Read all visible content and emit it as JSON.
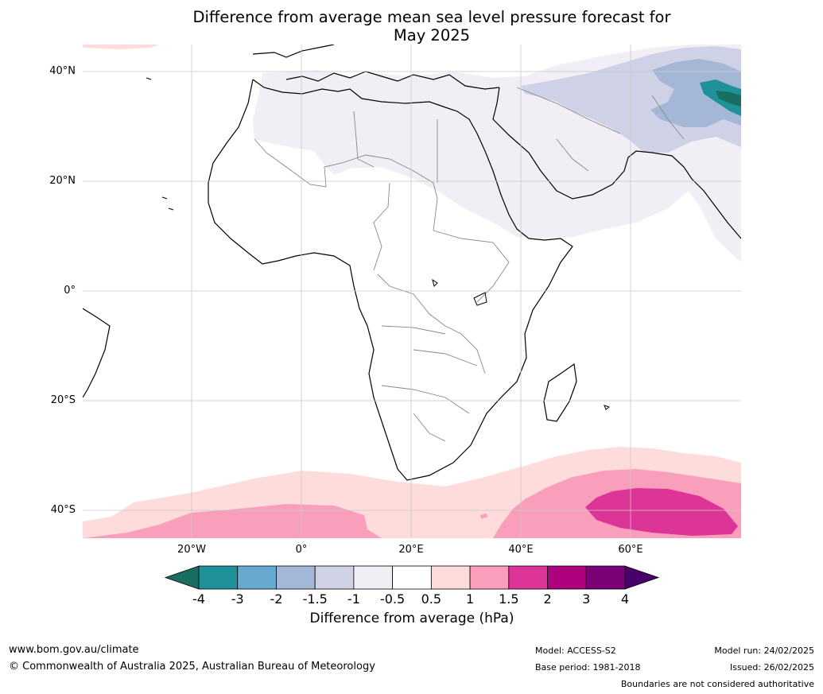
{
  "title_line1": "Difference from average mean sea level pressure forecast for",
  "title_line2": "May 2025",
  "lat_labels": [
    "40°N",
    "20°N",
    "0°",
    "20°S",
    "40°S"
  ],
  "lon_labels": [
    "20°W",
    "0°",
    "20°E",
    "40°E",
    "60°E"
  ],
  "colorbar": {
    "ticks": [
      "-4",
      "-3",
      "-2",
      "-1.5",
      "-1",
      "-0.5",
      "0.5",
      "1",
      "1.5",
      "2",
      "3",
      "4"
    ],
    "colors": [
      "#1a6e61",
      "#1f9199",
      "#67aacf",
      "#a4b7d6",
      "#cfd1e6",
      "#f2eef5",
      "#ffffff",
      "#fddcdb",
      "#f99fbc",
      "#dd3498",
      "#ae017e",
      "#7a0177",
      "#49006a"
    ],
    "label": "Difference from average (hPa)"
  },
  "footer": {
    "url": "www.bom.gov.au/climate",
    "copyright": "© Commonwealth of Australia 2025, Australian Bureau of Meteorology",
    "model": "Model: ACCESS-S2",
    "base_period": "Base period: 1981-2018",
    "model_run": "Model run: 24/02/2025",
    "issued": "Issued: 26/02/2025",
    "boundaries_note": "Boundaries are not considered authoritative"
  }
}
